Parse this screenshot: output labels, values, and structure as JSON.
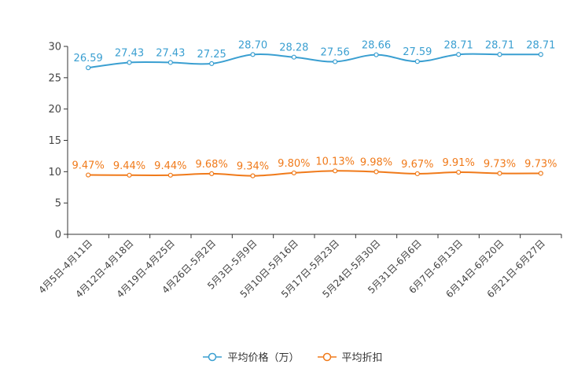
{
  "chart_data": {
    "type": "line",
    "categories": [
      "4月5日-4月11日",
      "4月12日-4月18日",
      "4月19日-4月25日",
      "4月26日-5月2日",
      "5月3日-5月9日",
      "5月10日-5月16日",
      "5月17日-5月23日",
      "5月24日-5月30日",
      "5月31日-6月6日",
      "6月7日-6月13日",
      "6月14日-6月20日",
      "6月21日-6月27日"
    ],
    "ylim": [
      0,
      30
    ],
    "yticks": [
      0,
      5,
      10,
      15,
      20,
      25,
      30
    ],
    "series": [
      {
        "name": "平均价格（万）",
        "color": "#3a9fd1",
        "values": [
          26.59,
          27.43,
          27.43,
          27.25,
          28.7,
          28.28,
          27.56,
          28.66,
          27.59,
          28.71,
          28.71,
          28.71
        ],
        "labels": [
          "26.59",
          "27.43",
          "27.43",
          "27.25",
          "28.70",
          "28.28",
          "27.56",
          "28.66",
          "27.59",
          "28.71",
          "28.71",
          "28.71"
        ]
      },
      {
        "name": "平均折扣",
        "color": "#f07a1a",
        "values": [
          9.47,
          9.44,
          9.44,
          9.68,
          9.34,
          9.8,
          10.13,
          9.98,
          9.67,
          9.91,
          9.73,
          9.73
        ],
        "labels": [
          "9.47%",
          "9.44%",
          "9.44%",
          "9.68%",
          "9.34%",
          "9.80%",
          "10.13%",
          "9.98%",
          "9.67%",
          "9.91%",
          "9.73%",
          "9.73%"
        ]
      }
    ],
    "legend_position": "bottom"
  }
}
